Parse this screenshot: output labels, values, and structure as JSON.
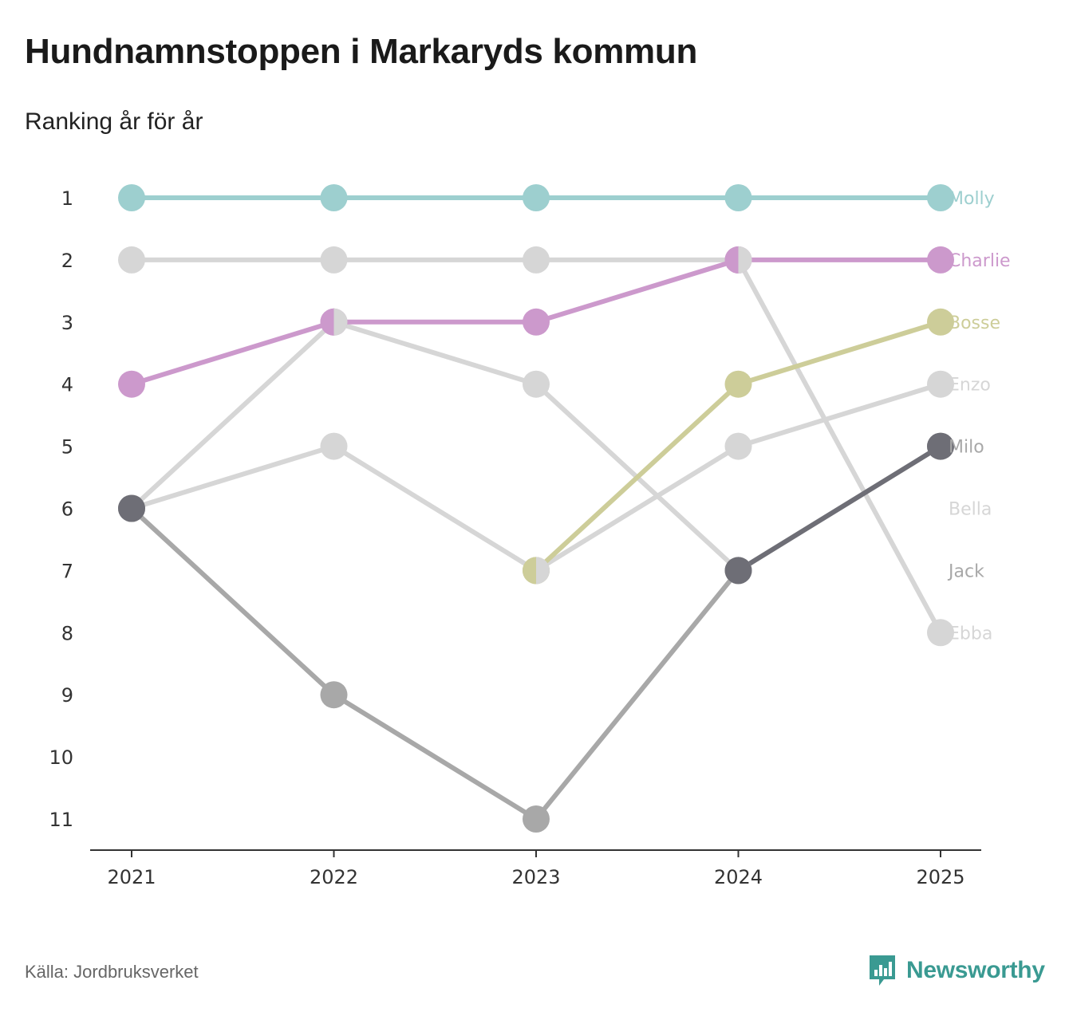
{
  "header": {
    "title": "Hundnamnstoppen i Markaryds kommun",
    "subtitle": "Ranking år för år"
  },
  "footer": {
    "source": "Källa: Jordbruksverket",
    "brand": "Newsworthy"
  },
  "colors": {
    "molly": "#9dcfcf",
    "charlie": "#cc99cc",
    "bosse": "#cdcd99",
    "light_gray": "#d6d6d6",
    "mid_gray": "#a8a8a8",
    "dark_gray": "#6e6e76",
    "axis": "#333333",
    "brand": "#3a9a92"
  },
  "chart_data": {
    "type": "line",
    "title": "Hundnamnstoppen i Markaryds kommun",
    "subtitle": "Ranking år för år",
    "xlabel": "",
    "ylabel": "",
    "x": [
      "2021",
      "2022",
      "2023",
      "2024",
      "2025"
    ],
    "y_ticks": [
      "1",
      "2",
      "3",
      "4",
      "5",
      "6",
      "7",
      "8",
      "9",
      "10",
      "11"
    ],
    "ylim": [
      1,
      11
    ],
    "y_inverted": true,
    "grid": false,
    "legend": "direct labels at right end",
    "series": [
      {
        "name": "Ebba",
        "color": "#d6d6d6",
        "label_color": "#d6d6d6",
        "values": [
          2,
          2,
          2,
          2,
          8
        ]
      },
      {
        "name": "Enzo",
        "color": "#d6d6d6",
        "label_color": "#d6d6d6",
        "values": [
          6,
          5,
          7,
          5,
          4
        ]
      },
      {
        "name": "Bella",
        "color": "#d6d6d6",
        "label_color": "#d6d6d6",
        "values": [
          6,
          3,
          4,
          7,
          null
        ]
      },
      {
        "name": "Jack",
        "color": "#a8a8a8",
        "label_color": "#a8a8a8",
        "values": [
          6,
          9,
          11,
          7,
          5
        ]
      },
      {
        "name": "Milo",
        "color": "#6e6e76",
        "label_color": "#a8a8a8",
        "values": [
          6,
          null,
          null,
          7,
          5
        ]
      },
      {
        "name": "Bosse",
        "color": "#cdcd99",
        "label_color": "#cdcd99",
        "values": [
          null,
          null,
          7,
          4,
          3
        ]
      },
      {
        "name": "Charlie",
        "color": "#cc99cc",
        "label_color": "#cc99cc",
        "values": [
          4,
          3,
          3,
          2,
          2
        ]
      },
      {
        "name": "Molly",
        "color": "#9dcfcf",
        "label_color": "#9dcfcf",
        "values": [
          1,
          1,
          1,
          1,
          1
        ]
      }
    ],
    "end_labels": [
      {
        "name": "Molly",
        "rank": 1,
        "color": "#9dcfcf"
      },
      {
        "name": "Charlie",
        "rank": 2,
        "color": "#cc99cc"
      },
      {
        "name": "Bosse",
        "rank": 3,
        "color": "#cdcd99"
      },
      {
        "name": "Enzo",
        "rank": 4,
        "color": "#d6d6d6"
      },
      {
        "name": "Milo",
        "rank": 5,
        "color": "#a8a8a8"
      },
      {
        "name": "Bella",
        "rank": 6,
        "color": "#d6d6d6"
      },
      {
        "name": "Jack",
        "rank": 7,
        "color": "#a8a8a8"
      },
      {
        "name": "Ebba",
        "rank": 8,
        "color": "#d6d6d6"
      }
    ]
  }
}
